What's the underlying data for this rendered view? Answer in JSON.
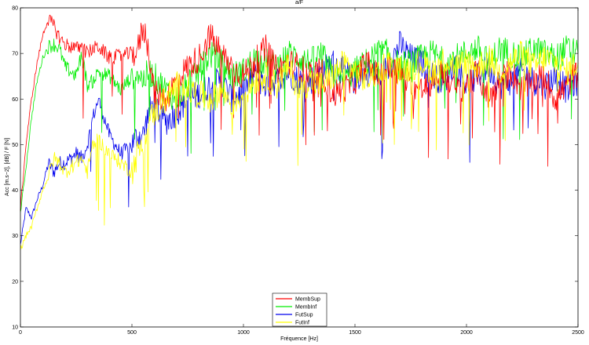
{
  "chart_data": {
    "type": "line",
    "title": "a/F",
    "xlabel": "Fréquence [Hz]",
    "ylabel": "Acc [m.s−2], [dB] / F [N]",
    "xlim": [
      0,
      2500
    ],
    "ylim": [
      10,
      80
    ],
    "x_ticks": [
      0,
      500,
      1000,
      1500,
      2000,
      2500
    ],
    "y_ticks": [
      10,
      20,
      30,
      40,
      50,
      60,
      70,
      80
    ],
    "grid": false,
    "legend_position": "bottom-center",
    "x": [
      0,
      25,
      50,
      75,
      100,
      125,
      150,
      175,
      200,
      250,
      275,
      300,
      325,
      350,
      400,
      450,
      500,
      525,
      550,
      575,
      600,
      650,
      700,
      750,
      800,
      850,
      900,
      950,
      1000,
      1050,
      1100,
      1150,
      1200,
      1250,
      1300,
      1350,
      1400,
      1450,
      1500,
      1550,
      1600,
      1650,
      1700,
      1750,
      1800,
      1850,
      1900,
      1950,
      2000,
      2050,
      2100,
      2150,
      2200,
      2250,
      2300,
      2350,
      2400,
      2450,
      2500
    ],
    "series": [
      {
        "name": "MembSup",
        "color": "#ff0000",
        "values": [
          36,
          50,
          60,
          68,
          74,
          77.5,
          76,
          73.5,
          72,
          71,
          71.5,
          70,
          71,
          71.5,
          69,
          69.5,
          70,
          70.5,
          76,
          71,
          61,
          60,
          64,
          67,
          69,
          74,
          70,
          67,
          65,
          68,
          71,
          66,
          68,
          67,
          65,
          66,
          61,
          62,
          64,
          68,
          65,
          67,
          66,
          63,
          62,
          64,
          66,
          62,
          63,
          66,
          60,
          64,
          66,
          62,
          64,
          65,
          60,
          63,
          66
        ]
      },
      {
        "name": "MembInf",
        "color": "#00ee00",
        "values": [
          35,
          45,
          56,
          64,
          69,
          71.5,
          72,
          71,
          67,
          65,
          70,
          63,
          64,
          66,
          65,
          62,
          65,
          66,
          64,
          66,
          65,
          62,
          60,
          63,
          66,
          70,
          68,
          65,
          66,
          69,
          68,
          67,
          70,
          69,
          68,
          70,
          65,
          64,
          66,
          68,
          70,
          70,
          67,
          68,
          69,
          70,
          68,
          69,
          70,
          71,
          68,
          71,
          70,
          69,
          71,
          70,
          69,
          71,
          70
        ]
      },
      {
        "name": "FutSup",
        "color": "#0000ee",
        "values": [
          28,
          36,
          34,
          38,
          41,
          46,
          44,
          46,
          46,
          48,
          47,
          50,
          56,
          60,
          52,
          48,
          50,
          52,
          52,
          57,
          59,
          55,
          57,
          60,
          61,
          63,
          64,
          60,
          62,
          65,
          63,
          64,
          66,
          64,
          64,
          66,
          68,
          66,
          64,
          66,
          65,
          67,
          72,
          69,
          68,
          65,
          64,
          68,
          63,
          65,
          67,
          63,
          64,
          66,
          64,
          63,
          65,
          62,
          64
        ]
      },
      {
        "name": "FutInf",
        "color": "#ffff00",
        "values": [
          27,
          30,
          32,
          36,
          40,
          43,
          47,
          46,
          44,
          46,
          47,
          44,
          50,
          51,
          48,
          46,
          44,
          48,
          50,
          55,
          57,
          60,
          63,
          62,
          61,
          60,
          62,
          59,
          61,
          64,
          65,
          63,
          67,
          62,
          64,
          63,
          65,
          68,
          66,
          64,
          66,
          68,
          66,
          67,
          68,
          66,
          69,
          67,
          68,
          67,
          69,
          66,
          68,
          70,
          67,
          69,
          68,
          66,
          68
        ]
      }
    ]
  }
}
